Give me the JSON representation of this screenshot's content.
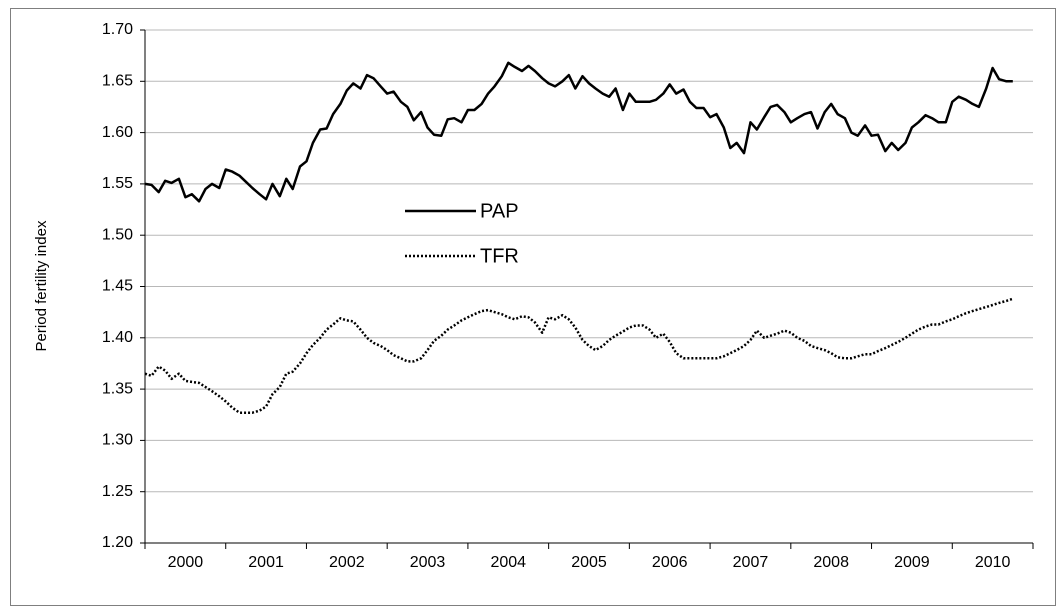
{
  "chart_data": {
    "type": "line",
    "y_label": "Period fertility index",
    "categories": [
      "2000",
      "2001",
      "2002",
      "2003",
      "2004",
      "2005",
      "2006",
      "2007",
      "2008",
      "2009",
      "2010"
    ],
    "xlim": [
      2000,
      2011
    ],
    "xticks": [
      2000,
      2001,
      2002,
      2003,
      2004,
      2005,
      2006,
      2007,
      2008,
      2009,
      2010,
      2011
    ],
    "ylim": [
      1.2,
      1.7
    ],
    "yticks": [
      {
        "value": 1.2,
        "label": "1.20"
      },
      1.25,
      {
        "value": 1.3,
        "label": "1.30"
      },
      1.35,
      {
        "value": 1.4,
        "label": "1.40"
      },
      1.45,
      {
        "value": 1.5,
        "label": "1.50"
      },
      1.55,
      {
        "value": 1.6,
        "label": "1.60"
      },
      1.65,
      {
        "value": 1.7,
        "label": "1.70"
      }
    ],
    "grid": true,
    "x": [
      2000,
      2000.08,
      2000.17,
      2000.25,
      2000.33,
      2000.42,
      2000.5,
      2000.58,
      2000.67,
      2000.75,
      2000.83,
      2000.92,
      2001,
      2001.08,
      2001.17,
      2001.25,
      2001.33,
      2001.42,
      2001.5,
      2001.58,
      2001.67,
      2001.75,
      2001.83,
      2001.92,
      2002,
      2002.08,
      2002.17,
      2002.25,
      2002.33,
      2002.42,
      2002.5,
      2002.58,
      2002.67,
      2002.75,
      2002.83,
      2002.92,
      2003,
      2003.08,
      2003.17,
      2003.25,
      2003.33,
      2003.42,
      2003.5,
      2003.58,
      2003.67,
      2003.75,
      2003.83,
      2003.92,
      2004,
      2004.08,
      2004.17,
      2004.25,
      2004.33,
      2004.42,
      2004.5,
      2004.58,
      2004.67,
      2004.75,
      2004.83,
      2004.92,
      2005,
      2005.08,
      2005.17,
      2005.25,
      2005.33,
      2005.42,
      2005.5,
      2005.58,
      2005.67,
      2005.75,
      2005.83,
      2005.92,
      2006,
      2006.08,
      2006.17,
      2006.25,
      2006.33,
      2006.42,
      2006.5,
      2006.58,
      2006.67,
      2006.75,
      2006.83,
      2006.92,
      2007,
      2007.08,
      2007.17,
      2007.25,
      2007.33,
      2007.42,
      2007.5,
      2007.58,
      2007.67,
      2007.75,
      2007.83,
      2007.92,
      2008,
      2008.08,
      2008.17,
      2008.25,
      2008.33,
      2008.42,
      2008.5,
      2008.58,
      2008.67,
      2008.75,
      2008.83,
      2008.92,
      2009,
      2009.08,
      2009.17,
      2009.25,
      2009.33,
      2009.42,
      2009.5,
      2009.58,
      2009.67,
      2009.75,
      2009.83,
      2009.92,
      2010,
      2010.08,
      2010.17,
      2010.25,
      2010.33,
      2010.42,
      2010.5,
      2010.58,
      2010.67,
      2010.75
    ],
    "series": [
      {
        "name": "PAP",
        "color": "#000000",
        "style": "solid",
        "values": [
          1.55,
          1.549,
          1.542,
          1.553,
          1.551,
          1.555,
          1.537,
          1.54,
          1.533,
          1.545,
          1.55,
          1.546,
          1.564,
          1.562,
          1.558,
          1.552,
          1.546,
          1.54,
          1.535,
          1.55,
          1.538,
          1.555,
          1.545,
          1.567,
          1.572,
          1.59,
          1.603,
          1.604,
          1.618,
          1.628,
          1.641,
          1.648,
          1.643,
          1.656,
          1.653,
          1.645,
          1.638,
          1.64,
          1.63,
          1.625,
          1.612,
          1.62,
          1.605,
          1.598,
          1.597,
          1.613,
          1.614,
          1.61,
          1.622,
          1.622,
          1.628,
          1.638,
          1.645,
          1.655,
          1.668,
          1.664,
          1.66,
          1.665,
          1.66,
          1.653,
          1.648,
          1.645,
          1.65,
          1.656,
          1.643,
          1.655,
          1.648,
          1.643,
          1.638,
          1.635,
          1.643,
          1.622,
          1.638,
          1.63,
          1.63,
          1.63,
          1.632,
          1.638,
          1.647,
          1.638,
          1.642,
          1.63,
          1.624,
          1.624,
          1.615,
          1.618,
          1.605,
          1.585,
          1.59,
          1.58,
          1.61,
          1.603,
          1.615,
          1.625,
          1.627,
          1.62,
          1.61,
          1.614,
          1.618,
          1.62,
          1.604,
          1.62,
          1.628,
          1.618,
          1.614,
          1.6,
          1.597,
          1.607,
          1.597,
          1.598,
          1.582,
          1.59,
          1.583,
          1.59,
          1.605,
          1.61,
          1.617,
          1.614,
          1.61,
          1.61,
          1.63,
          1.635,
          1.632,
          1.628,
          1.625,
          1.643,
          1.663,
          1.652,
          1.65,
          1.65
        ]
      },
      {
        "name": "TFR",
        "color": "#000000",
        "style": "dotted",
        "values": [
          1.365,
          1.363,
          1.372,
          1.368,
          1.36,
          1.365,
          1.358,
          1.357,
          1.356,
          1.352,
          1.348,
          1.343,
          1.338,
          1.332,
          1.327,
          1.327,
          1.327,
          1.329,
          1.333,
          1.345,
          1.352,
          1.365,
          1.367,
          1.375,
          1.385,
          1.393,
          1.4,
          1.408,
          1.413,
          1.419,
          1.417,
          1.416,
          1.408,
          1.4,
          1.395,
          1.392,
          1.388,
          1.383,
          1.38,
          1.377,
          1.377,
          1.38,
          1.388,
          1.397,
          1.402,
          1.408,
          1.412,
          1.417,
          1.42,
          1.423,
          1.426,
          1.427,
          1.425,
          1.423,
          1.42,
          1.418,
          1.421,
          1.42,
          1.415,
          1.405,
          1.42,
          1.418,
          1.422,
          1.418,
          1.41,
          1.398,
          1.392,
          1.388,
          1.392,
          1.398,
          1.402,
          1.406,
          1.41,
          1.412,
          1.412,
          1.408,
          1.4,
          1.404,
          1.396,
          1.385,
          1.38,
          1.38,
          1.38,
          1.38,
          1.38,
          1.38,
          1.382,
          1.385,
          1.388,
          1.392,
          1.398,
          1.407,
          1.4,
          1.402,
          1.404,
          1.407,
          1.405,
          1.4,
          1.397,
          1.392,
          1.39,
          1.388,
          1.385,
          1.381,
          1.38,
          1.38,
          1.382,
          1.384,
          1.384,
          1.387,
          1.39,
          1.393,
          1.396,
          1.4,
          1.404,
          1.408,
          1.411,
          1.413,
          1.413,
          1.416,
          1.418,
          1.421,
          1.424,
          1.426,
          1.428,
          1.43,
          1.432,
          1.434,
          1.436,
          1.438
        ]
      }
    ]
  }
}
